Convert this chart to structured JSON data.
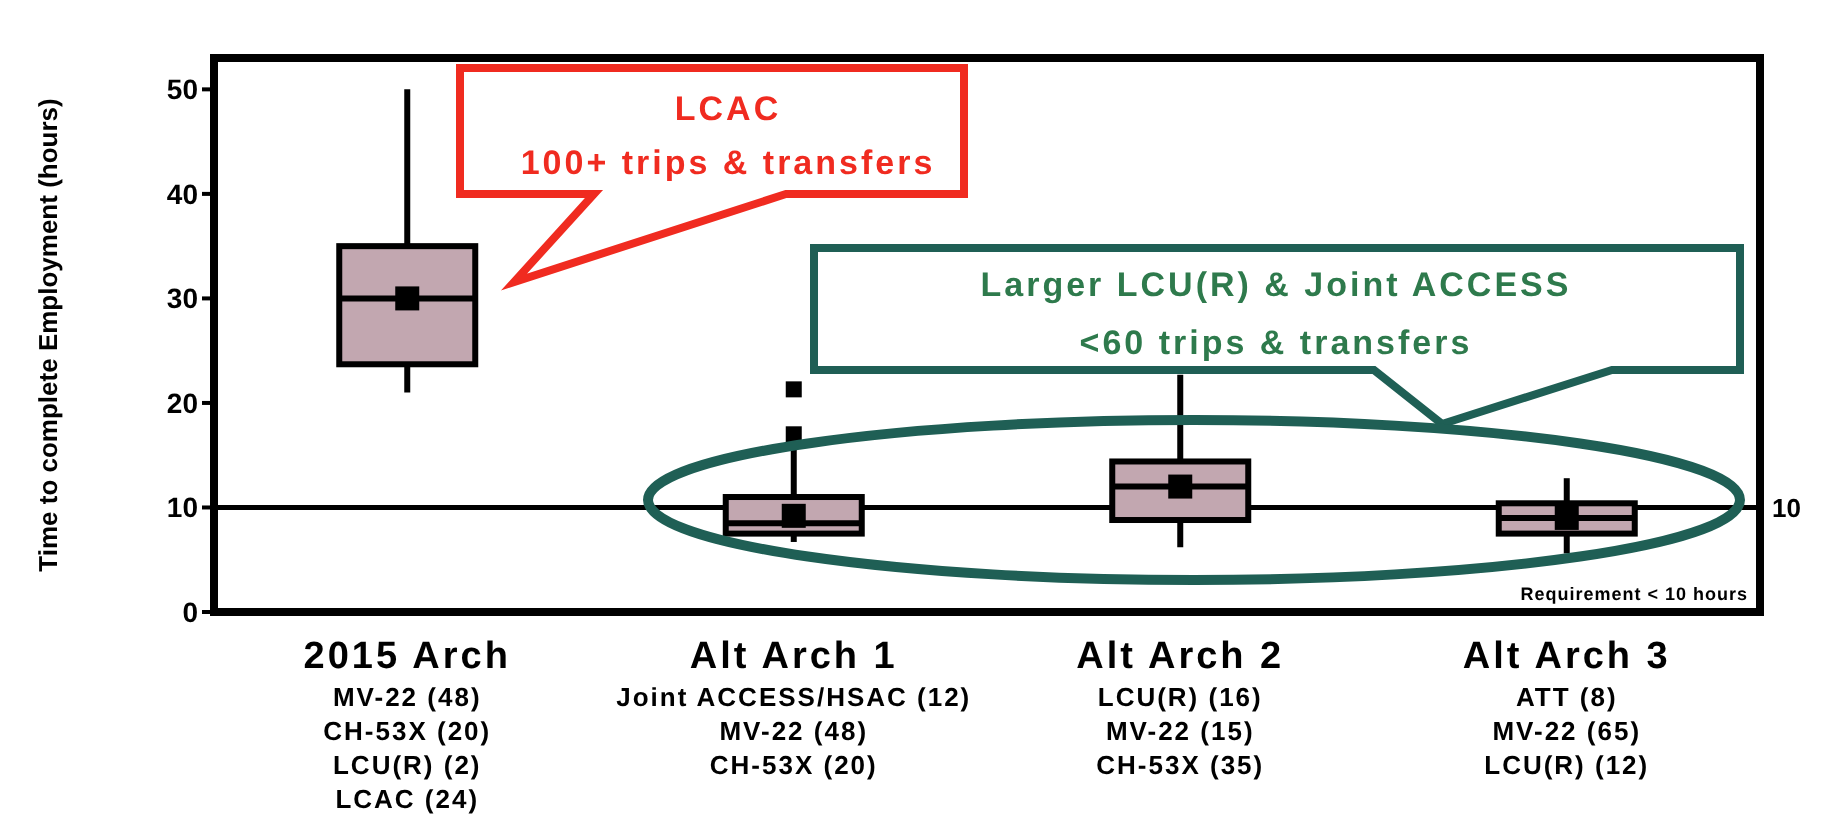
{
  "chart_data": {
    "type": "box",
    "ylabel": "Time to complete Employment (hours)",
    "categories": [
      "2015 Arch\nMV-22 (48)\nCH-53X (20)\nLCU(R) (2)\nLCAC (24)",
      "Alt Arch 1\nJoint ACCESS/HSAC (12)\nMV-22 (48)\nCH-53X (20)",
      "Alt Arch 2\nLCU(R) (16)\nMV-22 (15)\nCH-53X (35)",
      "Alt Arch 3\nATT (8)\nMV-22 (65)\nLCU(R) (12)"
    ],
    "boxes": [
      {
        "low": 21,
        "q1": 23.7,
        "median": 30,
        "q3": 35,
        "high": 50,
        "mean": 30
      },
      {
        "low": 6.7,
        "q1": 7.5,
        "median": 8.5,
        "q3": 11,
        "high": 16,
        "mean": 9.2,
        "outliers": [
          17,
          21.3
        ]
      },
      {
        "low": 6.2,
        "q1": 8.8,
        "median": 12,
        "q3": 14.4,
        "high": 22.7,
        "mean": 12
      },
      {
        "low": 5.6,
        "q1": 7.5,
        "median": 9,
        "q3": 10.4,
        "high": 12.8,
        "mean": 9
      }
    ],
    "color": "#c2a7b0",
    "ylim": [
      0,
      53
    ],
    "yticks": [
      0,
      10,
      20,
      30,
      40,
      50
    ],
    "marker": "square",
    "ref_lines": [
      {
        "axis": "y",
        "value": 10,
        "label": "10"
      }
    ],
    "annotations": [
      "LCAC\n100+ trips & transfers",
      "Larger LCU(R) & Joint ACCESS\n<60 trips & transfers",
      "Requirement < 10 hours"
    ]
  }
}
